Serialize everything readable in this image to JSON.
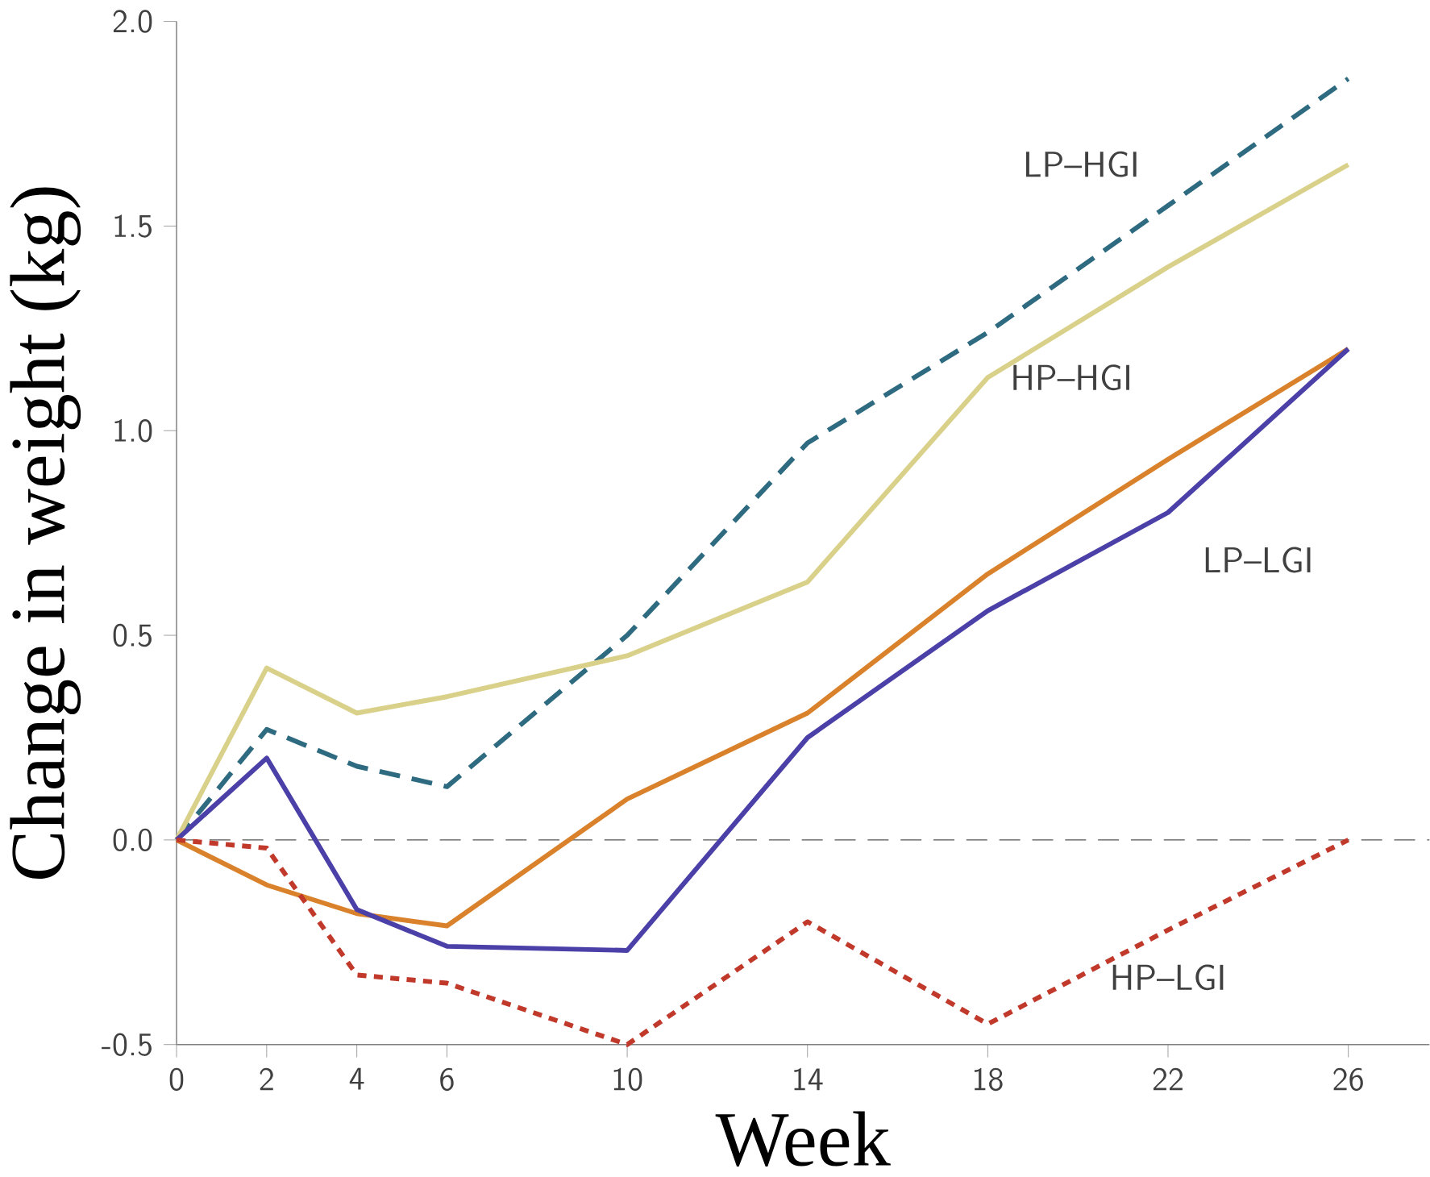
{
  "chart_data": {
    "type": "line",
    "xlabel": "Week",
    "ylabel": "Change in weight (kg)",
    "x": [
      0,
      2,
      4,
      6,
      10,
      14,
      18,
      22,
      26
    ],
    "series": [
      {
        "name": "LP–HGI",
        "color": "#2e6b80",
        "line_style": "dashed",
        "values": [
          0,
          0.27,
          0.18,
          0.13,
          0.5,
          0.97,
          1.24,
          1.55,
          1.86
        ]
      },
      {
        "name": "HP–HGI",
        "color": "#d9d08a",
        "line_style": "solid",
        "values": [
          0,
          0.42,
          0.31,
          0.35,
          0.45,
          0.63,
          1.13,
          1.4,
          1.65
        ]
      },
      {
        "color": "#d9822b",
        "line_style": "solid",
        "values": [
          0,
          -0.11,
          -0.18,
          -0.21,
          0.1,
          0.31,
          0.65,
          0.93,
          1.2
        ]
      },
      {
        "name": "LP–LGI",
        "color": "#4b3fa8",
        "line_style": "solid",
        "values": [
          0,
          0.2,
          -0.17,
          -0.26,
          -0.27,
          0.25,
          0.56,
          0.8,
          1.2
        ]
      },
      {
        "name": "HP–LGI",
        "color": "#c0392b",
        "line_style": "dotted",
        "values": [
          0,
          -0.02,
          -0.33,
          -0.35,
          -0.5,
          -0.2,
          -0.45,
          -0.22,
          0
        ]
      }
    ],
    "xlim": [
      0,
      27.8
    ],
    "ylim": [
      -0.5,
      2.0
    ],
    "xticks": [
      0,
      2,
      4,
      6,
      10,
      14,
      18,
      22,
      26
    ],
    "yticks": [
      {
        "value": -0.5,
        "label": "-0.5"
      },
      {
        "value": 0,
        "label": "0.0"
      },
      {
        "value": 0.5,
        "label": "0.5"
      },
      {
        "value": 1.0,
        "label": "1.0"
      },
      {
        "value": 1.5,
        "label": "1.5"
      },
      {
        "value": 2.0,
        "label": "2.0"
      }
    ],
    "ref_lines": [
      {
        "axis": "y",
        "value": 0,
        "color": "#555555",
        "line_style": "dashed"
      }
    ],
    "marker": "none"
  }
}
